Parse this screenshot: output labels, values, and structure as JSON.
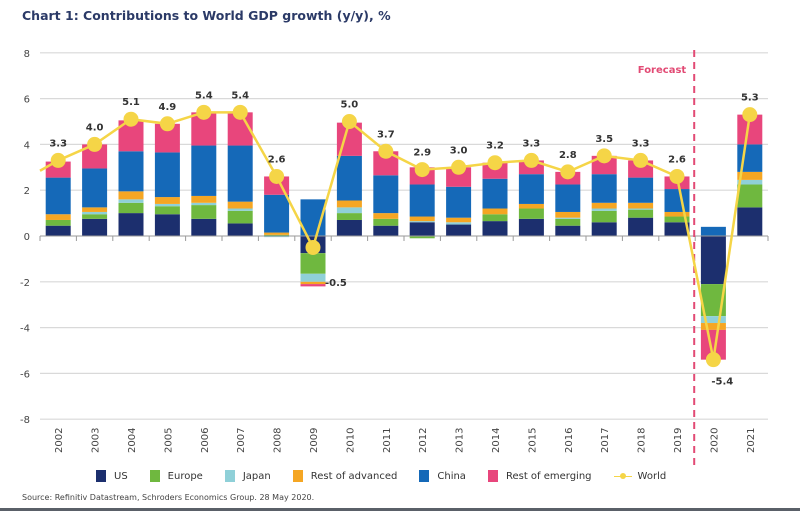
{
  "title": "Chart 1: Contributions to World GDP growth (y/y), %",
  "source": "Source: Refinitiv Datastream, Schroders Economics Group. 28 May 2020.",
  "chart_data": {
    "type": "bar",
    "stacked": true,
    "title": "Chart 1: Contributions to World GDP growth (y/y), %",
    "xlabel": "",
    "ylabel": "",
    "ylim": [
      -8,
      8
    ],
    "yticks": [
      8,
      6,
      4,
      2,
      0,
      -2,
      -4,
      -6,
      -8
    ],
    "grid": true,
    "legend_position": "bottom",
    "categories": [
      "2002",
      "2003",
      "2004",
      "2005",
      "2006",
      "2007",
      "2008",
      "2009",
      "2010",
      "2011",
      "2012",
      "2013",
      "2014",
      "2015",
      "2016",
      "2017",
      "2018",
      "2019",
      "2020",
      "2021"
    ],
    "series": [
      {
        "name": "US",
        "color": "#1c2f6e",
        "values": [
          0.45,
          0.75,
          1.0,
          0.95,
          0.75,
          0.55,
          0.0,
          -0.75,
          0.7,
          0.45,
          0.6,
          0.5,
          0.65,
          0.75,
          0.45,
          0.6,
          0.8,
          0.6,
          -2.1,
          1.25
        ]
      },
      {
        "name": "Europe",
        "color": "#6fb83f",
        "values": [
          0.25,
          0.2,
          0.45,
          0.35,
          0.6,
          0.55,
          0.05,
          -0.9,
          0.3,
          0.3,
          -0.1,
          0.0,
          0.3,
          0.45,
          0.3,
          0.5,
          0.35,
          0.25,
          -1.4,
          1.0
        ]
      },
      {
        "name": "Japan",
        "color": "#8fd0d8",
        "values": [
          0.0,
          0.1,
          0.15,
          0.1,
          0.1,
          0.1,
          -0.05,
          -0.35,
          0.25,
          0.0,
          0.05,
          0.1,
          0.0,
          0.0,
          0.05,
          0.1,
          0.05,
          0.0,
          -0.3,
          0.2
        ]
      },
      {
        "name": "Rest of advanced",
        "color": "#f5a623",
        "values": [
          0.25,
          0.2,
          0.35,
          0.3,
          0.3,
          0.3,
          0.1,
          -0.1,
          0.3,
          0.25,
          0.2,
          0.2,
          0.25,
          0.2,
          0.25,
          0.25,
          0.25,
          0.2,
          -0.3,
          0.35
        ]
      },
      {
        "name": "China",
        "color": "#1569b8",
        "values": [
          1.6,
          1.7,
          1.75,
          1.95,
          2.2,
          2.45,
          1.65,
          1.6,
          1.95,
          1.65,
          1.4,
          1.35,
          1.3,
          1.3,
          1.2,
          1.25,
          1.1,
          1.0,
          0.4,
          1.2
        ]
      },
      {
        "name": "Rest of emerging",
        "color": "#e8467c",
        "values": [
          0.7,
          1.05,
          1.35,
          1.25,
          1.45,
          1.45,
          0.8,
          -0.1,
          1.45,
          1.05,
          0.75,
          0.85,
          0.7,
          0.6,
          0.55,
          0.8,
          0.75,
          0.55,
          -1.3,
          1.3
        ]
      }
    ],
    "line_series": {
      "name": "World",
      "color": "#f5d547",
      "values": [
        3.3,
        4.0,
        5.1,
        4.9,
        5.4,
        5.4,
        2.6,
        -0.5,
        5.0,
        3.7,
        2.9,
        3.0,
        3.2,
        3.3,
        2.8,
        3.5,
        3.3,
        2.6,
        -5.4,
        5.3
      ],
      "labels": [
        "3.3",
        "4.0",
        "5.1",
        "4.9",
        "5.4",
        "5.4",
        "2.6",
        "-0.5",
        "5.0",
        "3.7",
        "2.9",
        "3.0",
        "3.2",
        "3.3",
        "2.8",
        "3.5",
        "3.3",
        "2.6",
        "-5.4",
        "5.3"
      ]
    },
    "annotations": [
      {
        "text": "Forecast",
        "color": "#e24a74",
        "between": [
          "2019",
          "2020"
        ],
        "style": "dashed-vertical-line"
      }
    ]
  }
}
